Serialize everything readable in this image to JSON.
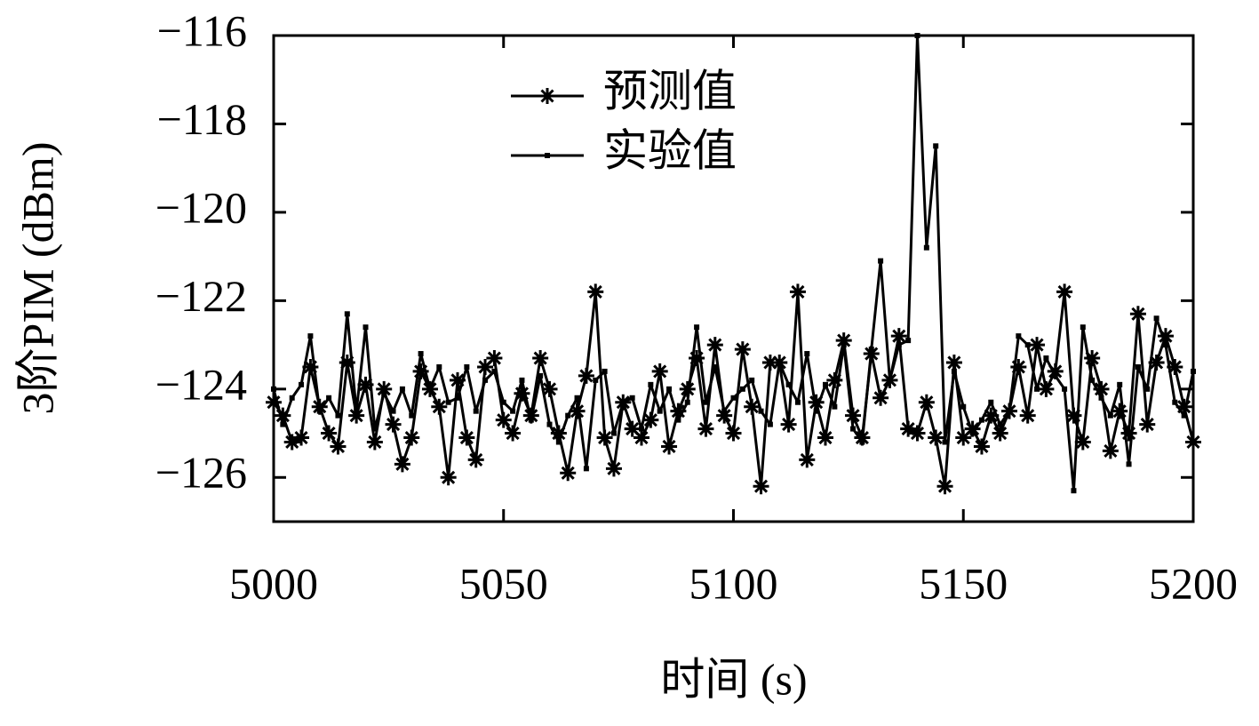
{
  "chart_data": {
    "type": "line",
    "xlabel": "时间 (s)",
    "ylabel": "3阶PIM (dBm)",
    "x": [
      5000,
      5002,
      5004,
      5006,
      5008,
      5010,
      5012,
      5014,
      5016,
      5018,
      5020,
      5022,
      5024,
      5026,
      5028,
      5030,
      5032,
      5034,
      5036,
      5038,
      5040,
      5042,
      5044,
      5046,
      5048,
      5050,
      5052,
      5054,
      5056,
      5058,
      5060,
      5062,
      5064,
      5066,
      5068,
      5070,
      5072,
      5074,
      5076,
      5078,
      5080,
      5082,
      5084,
      5086,
      5088,
      5090,
      5092,
      5094,
      5096,
      5098,
      5100,
      5102,
      5104,
      5106,
      5108,
      5110,
      5112,
      5114,
      5116,
      5118,
      5120,
      5122,
      5124,
      5126,
      5128,
      5130,
      5132,
      5134,
      5136,
      5138,
      5140,
      5142,
      5144,
      5146,
      5148,
      5150,
      5152,
      5154,
      5156,
      5158,
      5160,
      5162,
      5164,
      5166,
      5168,
      5170,
      5172,
      5174,
      5176,
      5178,
      5180,
      5182,
      5184,
      5186,
      5188,
      5190,
      5192,
      5194,
      5196,
      5198,
      5200
    ],
    "series": [
      {
        "name": "预测值",
        "color": "#000000",
        "marker": "asterisk",
        "values": [
          -124.3,
          -124.6,
          -125.2,
          -125.1,
          -123.5,
          -124.4,
          -125.0,
          -125.3,
          -123.4,
          -124.6,
          -123.9,
          -125.2,
          -124.0,
          -124.8,
          -125.7,
          -125.1,
          -123.6,
          -124.0,
          -124.4,
          -126.0,
          -123.8,
          -125.1,
          -125.6,
          -123.5,
          -123.3,
          -124.7,
          -125.0,
          -124.1,
          -124.6,
          -123.3,
          -124.0,
          -125.0,
          -125.9,
          -124.5,
          -123.7,
          -121.8,
          -125.1,
          -125.8,
          -124.3,
          -124.9,
          -125.1,
          -124.7,
          -123.6,
          -125.3,
          -124.5,
          -124.0,
          -123.3,
          -124.9,
          -123.0,
          -124.6,
          -125.0,
          -123.1,
          -124.4,
          -126.2,
          -123.4,
          -123.4,
          -124.8,
          -121.8,
          -125.6,
          -124.3,
          -125.1,
          -123.8,
          -122.9,
          -124.6,
          -125.1,
          -123.2,
          -124.2,
          -123.8,
          -122.8,
          -124.9,
          -125.0,
          -124.3,
          -125.1,
          -126.2,
          -123.4,
          -125.1,
          -124.9,
          -125.3,
          -124.6,
          -125.0,
          -124.5,
          -123.5,
          -124.6,
          -123.0,
          -124.0,
          -123.6,
          -121.8,
          -124.6,
          -125.2,
          -123.3,
          -124.0,
          -125.4,
          -124.5,
          -125.0,
          -122.3,
          -124.8,
          -123.4,
          -122.8,
          -123.5,
          -124.4,
          -125.2
        ]
      },
      {
        "name": "实验值",
        "color": "#000000",
        "marker": "square",
        "values": [
          -124.0,
          -124.8,
          -124.2,
          -123.9,
          -122.8,
          -124.5,
          -124.2,
          -124.6,
          -122.3,
          -124.5,
          -122.6,
          -124.9,
          -124.1,
          -124.5,
          -124.0,
          -124.6,
          -123.2,
          -124.0,
          -123.5,
          -124.3,
          -124.2,
          -123.5,
          -124.5,
          -123.8,
          -123.6,
          -124.3,
          -124.5,
          -123.8,
          -124.7,
          -123.7,
          -124.8,
          -125.2,
          -124.6,
          -124.2,
          -125.8,
          -123.8,
          -123.6,
          -125.0,
          -124.3,
          -124.2,
          -124.9,
          -123.9,
          -124.5,
          -124.0,
          -124.7,
          -124.3,
          -122.6,
          -124.3,
          -123.5,
          -124.5,
          -124.2,
          -124.0,
          -123.8,
          -124.5,
          -124.8,
          -123.4,
          -123.9,
          -124.3,
          -123.2,
          -124.5,
          -123.9,
          -124.4,
          -123.0,
          -124.9,
          -125.2,
          -123.1,
          -121.1,
          -123.8,
          -123.0,
          -122.9,
          -116.0,
          -120.8,
          -118.5,
          -125.2,
          -123.6,
          -124.4,
          -125.0,
          -124.7,
          -124.3,
          -124.8,
          -124.5,
          -122.8,
          -123.0,
          -124.0,
          -123.3,
          -123.7,
          -124.0,
          -126.3,
          -122.6,
          -123.8,
          -124.2,
          -124.6,
          -123.9,
          -125.7,
          -123.5,
          -124.0,
          -122.4,
          -123.0,
          -124.3,
          -124.6,
          -123.6
        ]
      }
    ],
    "xlim": [
      5000,
      5200
    ],
    "xticks": [
      5000,
      5050,
      5100,
      5150,
      5200
    ],
    "ylim": [
      -127,
      -116
    ],
    "yticks": [
      {
        "value": -116,
        "label": "−116"
      },
      {
        "value": -118,
        "label": "−118"
      },
      {
        "value": -120,
        "label": "−120"
      },
      {
        "value": -122,
        "label": "−122"
      },
      {
        "value": -124,
        "label": "−124"
      },
      {
        "value": -126,
        "label": "−126"
      }
    ],
    "legend": "upper center",
    "grid": false
  }
}
